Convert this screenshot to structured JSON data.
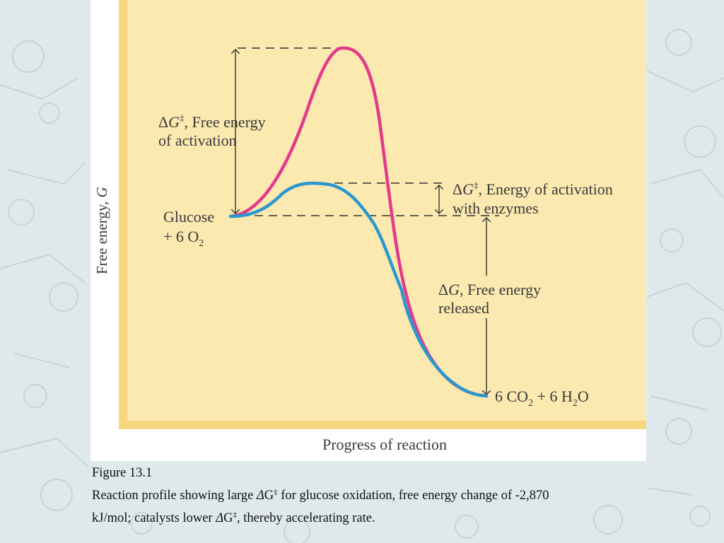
{
  "diagram": {
    "y_axis_label": "Free energy,",
    "y_axis_symbol": "G",
    "x_axis_label": "Progress of reaction",
    "reactants_line1": "Glucose",
    "reactants_line2_prefix": "+ 6 O",
    "reactants_line2_sub": "2",
    "products": {
      "p1": "6 CO",
      "sub1": "2",
      "p2": " + 6 H",
      "sub2": "2",
      "p3": "O"
    },
    "activation_label": {
      "delta": "Δ",
      "symbol": "G",
      "dagger": "‡",
      "rest": ", Free energy",
      "line2": "of activation"
    },
    "enzyme_label": {
      "delta": "Δ",
      "symbol": "G",
      "dagger": "‡",
      "rest": ", Energy of activation",
      "line2": "with enzymes"
    },
    "released_label": {
      "delta": "Δ",
      "symbol": "G",
      "rest": ", Free energy",
      "line2": "released"
    },
    "colors": {
      "uncatalyzed_curve": "#e23a8c",
      "catalyzed_curve": "#2a97cf",
      "plot_background": "#fbe9b0",
      "plot_border": "#f7d77e"
    }
  },
  "caption": {
    "title": "Figure 13.1",
    "line1_a": "Reaction profile showing large ",
    "delta": "Δ",
    "g": "G",
    "dagger": "‡",
    "line1_b": " for glucose oxidation, free energy change of -2,870",
    "line2_a": "kJ/mol; catalysts lower ",
    "line2_b": ", thereby accelerating rate."
  }
}
